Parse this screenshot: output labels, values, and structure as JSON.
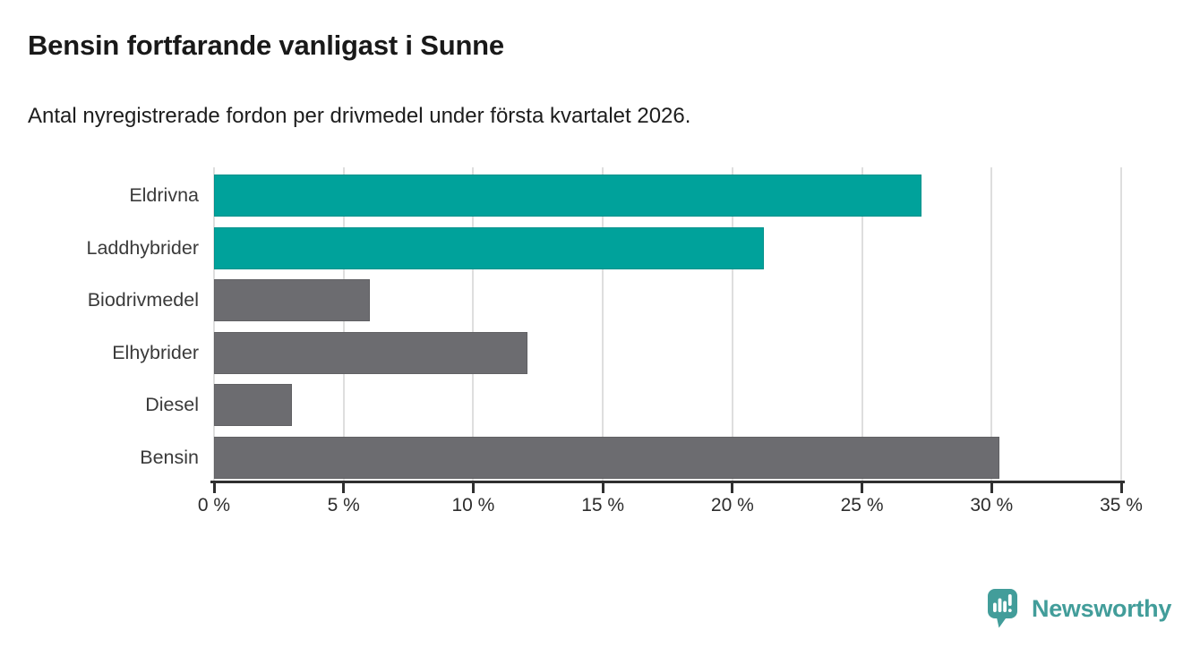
{
  "header": {
    "title": "Bensin fortfarande vanligast i Sunne",
    "subtitle": "Antal nyregistrerade fordon per drivmedel under första kvartalet 2026."
  },
  "colors": {
    "accent_teal": "#00a29b",
    "bar_gray": "#6c6c70",
    "logo_teal": "#429d9a",
    "gridline": "#dedede",
    "axis": "#2f2f2f",
    "title_text": "#191919"
  },
  "chart_data": {
    "type": "bar",
    "orientation": "horizontal",
    "title": "Bensin fortfarande vanligast i Sunne",
    "subtitle": "Antal nyregistrerade fordon per drivmedel under första kvartalet 2026.",
    "categories": [
      "Eldrivna",
      "Laddhybrider",
      "Biodrivmedel",
      "Elhybrider",
      "Diesel",
      "Bensin"
    ],
    "values": [
      27.3,
      21.2,
      6.0,
      12.1,
      3.0,
      30.3
    ],
    "unit": "%",
    "bar_colors": [
      "#00a29b",
      "#00a29b",
      "#6c6c70",
      "#6c6c70",
      "#6c6c70",
      "#6c6c70"
    ],
    "xlim": [
      0,
      35
    ],
    "x_ticks": [
      0,
      5,
      10,
      15,
      20,
      25,
      30,
      35
    ],
    "x_tick_labels": [
      "0 %",
      "5 %",
      "10 %",
      "15 %",
      "20 %",
      "25 %",
      "30 %",
      "35 %"
    ],
    "grid": "vertical-gridlines-behind-bars",
    "legend": "none",
    "xlabel": "",
    "ylabel": ""
  },
  "footer": {
    "brand": "Newsworthy",
    "logo_icon": "newsworthy-badge-bar-chart-icon"
  }
}
